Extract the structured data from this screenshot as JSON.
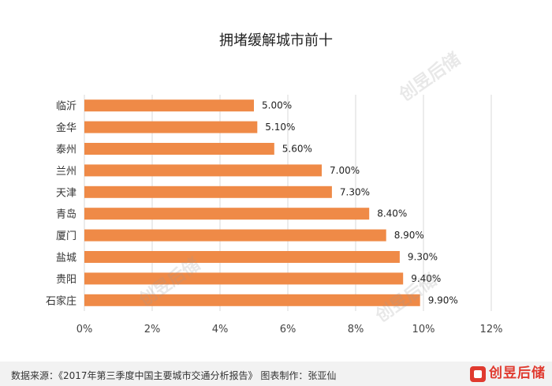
{
  "chart_data": {
    "type": "bar",
    "orientation": "horizontal",
    "title": "拥堵缓解城市前十",
    "categories": [
      "临沂",
      "金华",
      "泰州",
      "兰州",
      "天津",
      "青岛",
      "厦门",
      "盐城",
      "贵阳",
      "石家庄"
    ],
    "values": [
      5.0,
      5.1,
      5.6,
      7.0,
      7.3,
      8.4,
      8.9,
      9.3,
      9.4,
      9.9
    ],
    "value_labels": [
      "5.00%",
      "5.10%",
      "5.60%",
      "7.00%",
      "7.30%",
      "8.40%",
      "8.90%",
      "9.30%",
      "9.40%",
      "9.90%"
    ],
    "x_ticks": [
      "0%",
      "2%",
      "4%",
      "6%",
      "8%",
      "10%",
      "12%"
    ],
    "xlim": [
      0,
      12
    ],
    "grid": "vertical",
    "bar_color": "#ef8a47"
  },
  "footer": {
    "source": "数据来源：《2017年第三季度中国主要城市交通分析报告》 图表制作：张亚仙",
    "logo": "创昱后储"
  },
  "watermark": "创昱后储"
}
